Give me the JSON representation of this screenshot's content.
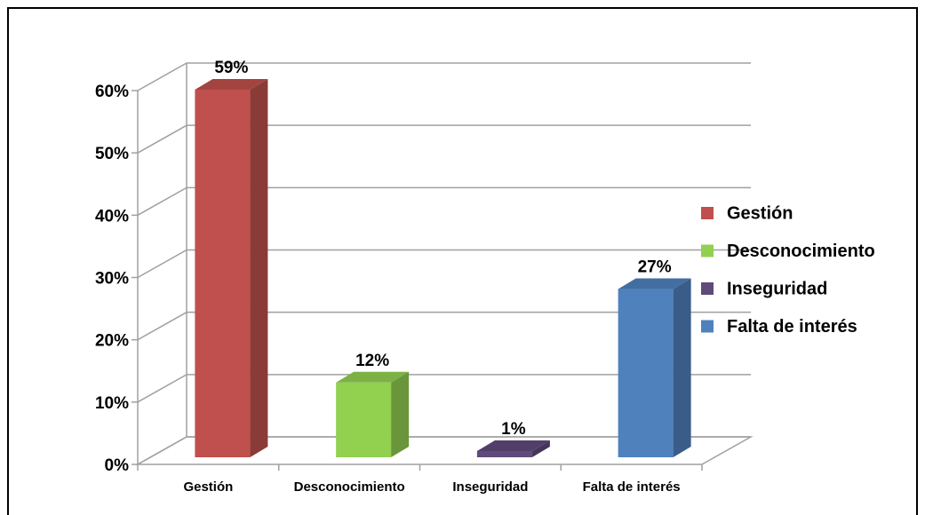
{
  "chart_data": {
    "type": "bar3d",
    "categories": [
      "Gestión",
      "Desconocimiento",
      "Inseguridad",
      "Falta de interés"
    ],
    "values": [
      59,
      12,
      1,
      27
    ],
    "value_labels": [
      "59%",
      "12%",
      "1%",
      "27%"
    ],
    "colors": [
      "#c0504d",
      "#92d050",
      "#604a7b",
      "#4f81bd"
    ],
    "ylim": [
      0,
      60
    ],
    "yticks": [
      {
        "value": 0,
        "label": "0%"
      },
      {
        "value": 10,
        "label": "10%"
      },
      {
        "value": 20,
        "label": "20%"
      },
      {
        "value": 30,
        "label": "30%"
      },
      {
        "value": 40,
        "label": "40%"
      },
      {
        "value": 50,
        "label": "50%"
      },
      {
        "value": 60,
        "label": "60%"
      }
    ],
    "grid": true,
    "legend": "right"
  }
}
